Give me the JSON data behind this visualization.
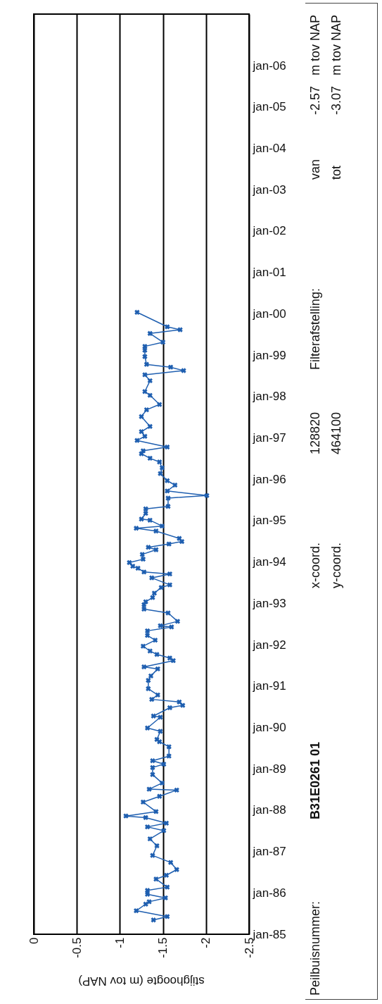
{
  "chart_data": {
    "type": "line",
    "orientation": "horizontal",
    "xlabel": "stijghoogte (m tov NAP)",
    "x": [
      "1985-05-07",
      "1985-06-06",
      "1985-07-28",
      "1985-09-24",
      "1985-10-15",
      "1985-11-18",
      "1985-12-20",
      "1986-01-23",
      "1986-02-21",
      "1986-05-03",
      "1986-06-06",
      "1986-07-26",
      "1986-09-27",
      "1986-11-28",
      "1987-02-21",
      "1987-04-23",
      "1987-07-05",
      "1987-08-07",
      "1987-09-09",
      "1987-10-28",
      "1987-11-11",
      "1987-12-20",
      "1988-03-13",
      "1988-05-03",
      "1988-06-27",
      "1988-07-05",
      "1988-08-28",
      "1988-11-11",
      "1989-01-12",
      "1989-02-11",
      "1989-03-13",
      "1989-04-23",
      "1989-07-15",
      "1989-08-28",
      "1989-09-17",
      "1989-11-28",
      "1989-12-27",
      "1990-04-01",
      "1990-04-12",
      "1990-06-24",
      "1990-07-15",
      "1990-08-14",
      "1990-09-06",
      "1990-10-15",
      "1990-12-09",
      "1991-02-21",
      "1991-04-01",
      "1991-06-02",
      "1991-06-20",
      "1991-08-14",
      "1991-09-06",
      "1991-10-08",
      "1991-11-07",
      "1991-12-20",
      "1992-02-11",
      "1992-03-24",
      "1992-05-03",
      "1992-06-06",
      "1992-06-17",
      "1992-07-26",
      "1992-10-08",
      "1992-11-11",
      "1992-12-20",
      "1993-01-15",
      "1993-02-21",
      "1993-04-01",
      "1993-05-21",
      "1993-06-13",
      "1993-08-14",
      "1993-09-17",
      "1993-10-05",
      "1993-11-07",
      "1993-11-25",
      "1993-12-27",
      "1994-01-26",
      "1994-03-09",
      "1994-04-19",
      "1994-05-11",
      "1994-06-09",
      "1994-07-01",
      "1994-07-28",
      "1994-10-01",
      "1994-10-26",
      "1994-11-14",
      "1995-01-05",
      "1995-01-15",
      "1995-03-06",
      "1995-04-15",
      "1995-05-07",
      "1995-07-19",
      "1995-08-11",
      "1995-09-20",
      "1995-11-11",
      "1995-12-20",
      "1996-02-21",
      "1996-04-12",
      "1996-06-02",
      "1996-07-05",
      "1996-08-14",
      "1996-09-09",
      "1996-10-12",
      "1996-12-09",
      "1997-01-15",
      "1997-02-25",
      "1997-04-12",
      "1997-07-08",
      "1997-09-06",
      "1997-10-23",
      "1998-01-12",
      "1998-02-14",
      "1998-05-21",
      "1998-07-12",
      "1998-08-18",
      "1998-09-17",
      "1998-10-12",
      "1998-12-20",
      "1999-02-14",
      "1999-03-20",
      "1999-04-26",
      "1999-07-12",
      "1999-08-14",
      "1999-09-09",
      "2000-01-15"
    ],
    "series": [
      {
        "color": "#1f5fb0",
        "values": [
          -1.39,
          -1.55,
          -1.19,
          -1.3,
          -1.34,
          -1.53,
          -1.32,
          -1.32,
          -1.55,
          -1.42,
          -1.54,
          -1.66,
          -1.59,
          -1.38,
          -1.43,
          -1.35,
          -1.51,
          -1.32,
          -1.54,
          -1.3,
          -1.07,
          -1.42,
          -1.27,
          -1.46,
          -1.66,
          -1.34,
          -1.49,
          -1.38,
          -1.38,
          -1.51,
          -1.38,
          -1.57,
          -1.57,
          -1.46,
          -1.43,
          -1.47,
          -1.32,
          -1.47,
          -1.39,
          -1.58,
          -1.73,
          -1.69,
          -1.37,
          -1.44,
          -1.33,
          -1.33,
          -1.36,
          -1.44,
          -1.28,
          -1.62,
          -1.58,
          -1.43,
          -1.35,
          -1.27,
          -1.41,
          -1.32,
          -1.32,
          -1.6,
          -1.47,
          -1.67,
          -1.56,
          -1.28,
          -1.28,
          -1.3,
          -1.38,
          -1.4,
          -1.48,
          -1.58,
          -1.37,
          -1.58,
          -1.28,
          -1.21,
          -1.15,
          -1.11,
          -1.27,
          -1.26,
          -1.42,
          -1.33,
          -1.57,
          -1.72,
          -1.69,
          -1.42,
          -1.19,
          -1.49,
          -1.35,
          -1.25,
          -1.3,
          -1.3,
          -1.56,
          -1.56,
          -2.01,
          -1.55,
          -1.64,
          -1.55,
          -1.47,
          -1.49,
          -1.46,
          -1.35,
          -1.25,
          -1.27,
          -1.55,
          -1.2,
          -1.29,
          -1.25,
          -1.35,
          -1.25,
          -1.31,
          -1.46,
          -1.35,
          -1.29,
          -1.35,
          -1.29,
          -1.74,
          -1.59,
          -1.31,
          -1.29,
          -1.29,
          -1.29,
          -1.5,
          -1.35,
          -1.7,
          -1.55,
          -1.2
        ]
      }
    ],
    "xlim": [
      0,
      -2.5
    ],
    "xticks": [
      0,
      -0.5,
      -1,
      -1.5,
      -2,
      -2.5
    ],
    "ylim": [
      "1985-01-01",
      "2007-04-01"
    ],
    "yticks": [
      {
        "value": "1985-01",
        "label": "jan-85"
      },
      {
        "value": "1986-01",
        "label": "jan-86"
      },
      {
        "value": "1987-01",
        "label": "jan-87"
      },
      {
        "value": "1988-01",
        "label": "jan-88"
      },
      {
        "value": "1989-01",
        "label": "jan-89"
      },
      {
        "value": "1990-01",
        "label": "jan-90"
      },
      {
        "value": "1991-01",
        "label": "jan-91"
      },
      {
        "value": "1992-01",
        "label": "jan-92"
      },
      {
        "value": "1993-01",
        "label": "jan-93"
      },
      {
        "value": "1994-01",
        "label": "jan-94"
      },
      {
        "value": "1995-01",
        "label": "jan-95"
      },
      {
        "value": "1996-01",
        "label": "jan-96"
      },
      {
        "value": "1997-01",
        "label": "jan-97"
      },
      {
        "value": "1998-01",
        "label": "jan-98"
      },
      {
        "value": "1999-01",
        "label": "jan-99"
      },
      {
        "value": "2000-01",
        "label": "jan-00"
      },
      {
        "value": "2001-01",
        "label": "jan-01"
      },
      {
        "value": "2002-01",
        "label": "jan-02"
      },
      {
        "value": "2003-01",
        "label": "jan-03"
      },
      {
        "value": "2004-01",
        "label": "jan-04"
      },
      {
        "value": "2005-01",
        "label": "jan-05"
      },
      {
        "value": "2006-01",
        "label": "jan-06"
      }
    ],
    "grid": "x",
    "marker": "cross",
    "line_style": "solid",
    "annotations": [
      "Peilbuisnummer:",
      "B31E0261 01",
      "x-coord.",
      "128820",
      "y-coord.",
      "464100",
      "Filterafstelling:",
      "van",
      "-2.57",
      "m tov NAP",
      "tot",
      "-3.07",
      "m tov NAP"
    ]
  }
}
